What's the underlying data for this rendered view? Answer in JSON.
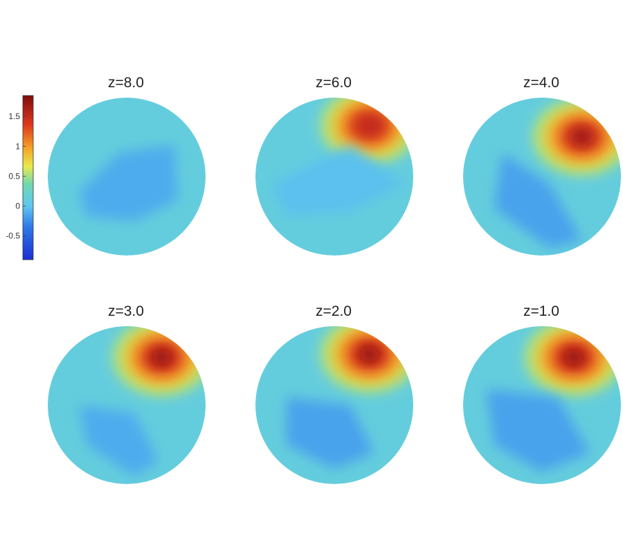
{
  "chart_data": {
    "type": "heatmap",
    "layout": "2x3 grid of circular cross-section maps",
    "colormap": [
      "#1a2fd6",
      "#2f78e8",
      "#5fc8ef",
      "#6fd9b0",
      "#e9e94a",
      "#f5a326",
      "#e0381f",
      "#8a1010"
    ],
    "background_value": 0.0,
    "colorbar": {
      "ticks": [
        "1.5",
        "1",
        "0.5",
        "0",
        "-0.5"
      ],
      "tick_values": [
        1.5,
        1.0,
        0.5,
        0.0,
        -0.5
      ],
      "range": [
        -0.9,
        1.85
      ],
      "orientation": "vertical",
      "placement": "left"
    },
    "panels": [
      {
        "title": "z=8.0",
        "max": 0.0,
        "min": -0.3,
        "regions": [
          {
            "kind": "low",
            "shape": [
              [
                0.2,
                0.6
              ],
              [
                0.45,
                0.35
              ],
              [
                0.8,
                0.3
              ],
              [
                0.82,
                0.65
              ],
              [
                0.55,
                0.78
              ],
              [
                0.25,
                0.75
              ]
            ],
            "value": -0.25
          }
        ]
      },
      {
        "title": "z=6.0",
        "max": 1.6,
        "min": -0.2,
        "regions": [
          {
            "kind": "high",
            "center": [
              0.72,
              0.18
            ],
            "value": 1.6
          },
          {
            "kind": "low",
            "shape": [
              [
                0.1,
                0.55
              ],
              [
                0.6,
                0.3
              ],
              [
                0.95,
                0.55
              ],
              [
                0.6,
                0.72
              ],
              [
                0.2,
                0.75
              ]
            ],
            "value": -0.15
          }
        ]
      },
      {
        "title": "z=4.0",
        "max": 1.8,
        "min": -0.35,
        "regions": [
          {
            "kind": "high",
            "center": [
              0.75,
              0.25
            ],
            "value": 1.8
          },
          {
            "kind": "low",
            "shape": [
              [
                0.25,
                0.35
              ],
              [
                0.55,
                0.55
              ],
              [
                0.75,
                0.9
              ],
              [
                0.55,
                0.95
              ],
              [
                0.2,
                0.7
              ]
            ],
            "value": -0.3
          }
        ]
      },
      {
        "title": "z=3.0",
        "max": 1.85,
        "min": -0.3,
        "regions": [
          {
            "kind": "high",
            "center": [
              0.72,
              0.2
            ],
            "value": 1.85
          },
          {
            "kind": "low",
            "shape": [
              [
                0.2,
                0.5
              ],
              [
                0.55,
                0.55
              ],
              [
                0.7,
                0.85
              ],
              [
                0.55,
                0.95
              ],
              [
                0.25,
                0.75
              ]
            ],
            "value": -0.25
          }
        ]
      },
      {
        "title": "z=2.0",
        "max": 1.85,
        "min": -0.4,
        "regions": [
          {
            "kind": "high",
            "center": [
              0.72,
              0.18
            ],
            "value": 1.85
          },
          {
            "kind": "low",
            "shape": [
              [
                0.2,
                0.45
              ],
              [
                0.6,
                0.5
              ],
              [
                0.75,
                0.8
              ],
              [
                0.5,
                0.9
              ],
              [
                0.2,
                0.75
              ]
            ],
            "value": -0.3
          }
        ]
      },
      {
        "title": "z=1.0",
        "max": 1.85,
        "min": -0.4,
        "regions": [
          {
            "kind": "high",
            "center": [
              0.7,
              0.2
            ],
            "value": 1.85
          },
          {
            "kind": "low",
            "shape": [
              [
                0.15,
                0.4
              ],
              [
                0.6,
                0.45
              ],
              [
                0.8,
                0.8
              ],
              [
                0.5,
                0.92
              ],
              [
                0.2,
                0.75
              ]
            ],
            "value": -0.3
          }
        ]
      }
    ]
  }
}
